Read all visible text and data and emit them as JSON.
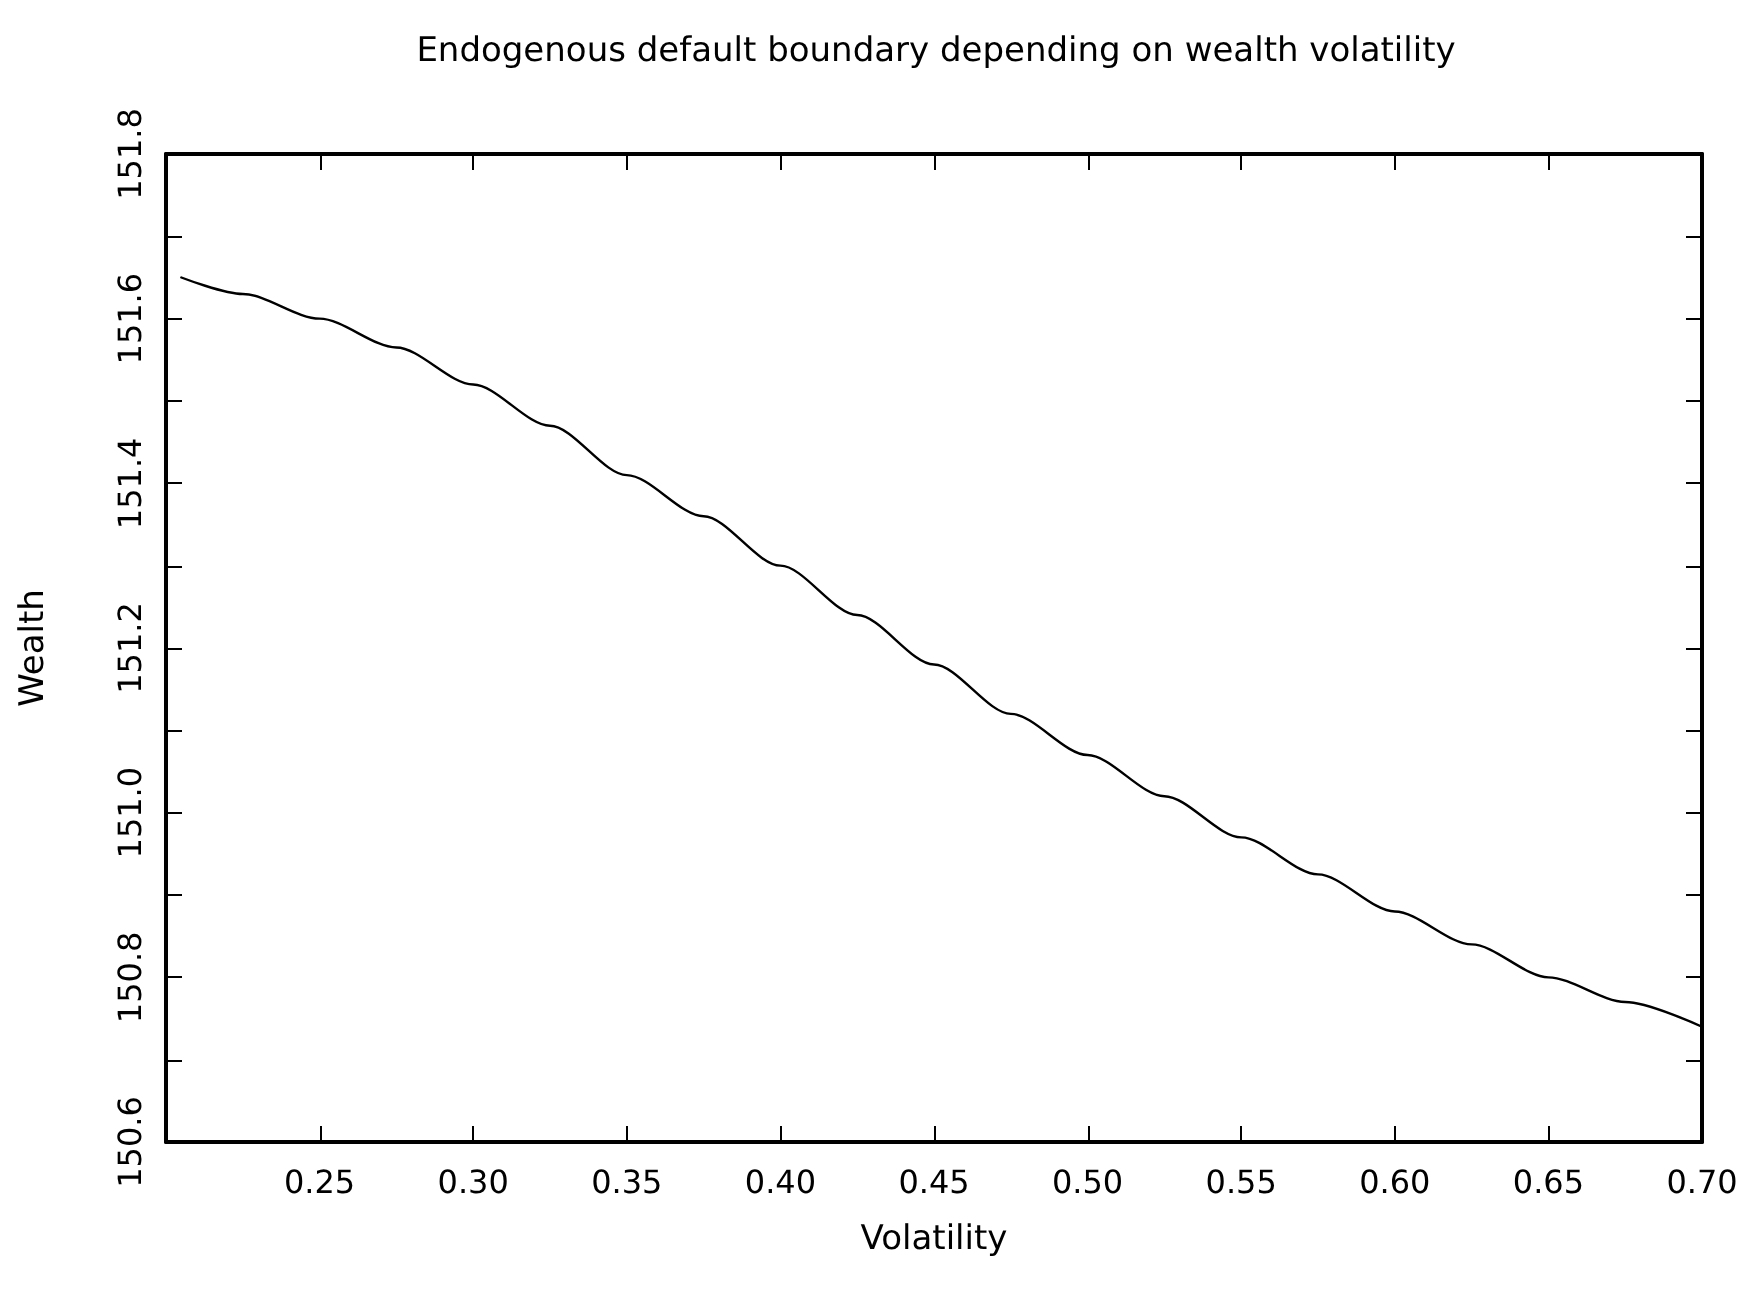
{
  "chart_data": {
    "type": "line",
    "title": "Endogenous default boundary depending on wealth volatility",
    "xlabel": "Volatility",
    "ylabel": "Wealth",
    "x": [
      0.205,
      0.225,
      0.25,
      0.275,
      0.3,
      0.325,
      0.35,
      0.375,
      0.4,
      0.425,
      0.45,
      0.475,
      0.5,
      0.525,
      0.55,
      0.575,
      0.6,
      0.625,
      0.65,
      0.675,
      0.7
    ],
    "series": [
      {
        "color": "#000000",
        "values": [
          151.65,
          151.63,
          151.6,
          151.565,
          151.52,
          151.47,
          151.41,
          151.36,
          151.3,
          151.24,
          151.18,
          151.12,
          151.07,
          151.02,
          150.97,
          150.925,
          150.88,
          150.84,
          150.8,
          150.77,
          150.74
        ]
      }
    ],
    "xlim": [
      0.2,
      0.7
    ],
    "xticks": [
      0.25,
      {
        "value": 0.3,
        "label": "0.30"
      },
      0.35,
      {
        "value": 0.4,
        "label": "0.40"
      },
      0.45,
      {
        "value": 0.5,
        "label": "0.50"
      },
      0.55,
      {
        "value": 0.6,
        "label": "0.60"
      },
      0.65,
      {
        "value": 0.7,
        "label": "0.70"
      }
    ],
    "ylim": [
      150.6,
      151.8
    ],
    "yticks": [
      150.6,
      {
        "value": 150.7,
        "label": null
      },
      150.8,
      {
        "value": 150.9,
        "label": null
      },
      {
        "value": 151,
        "label": "151.0"
      },
      {
        "value": 151.1,
        "label": null
      },
      151.2,
      {
        "value": 151.3,
        "label": null
      },
      151.4,
      {
        "value": 151.5,
        "label": null
      },
      151.6,
      {
        "value": 151.7,
        "label": null
      },
      151.8
    ],
    "marker": "none",
    "line_style": "solid"
  }
}
